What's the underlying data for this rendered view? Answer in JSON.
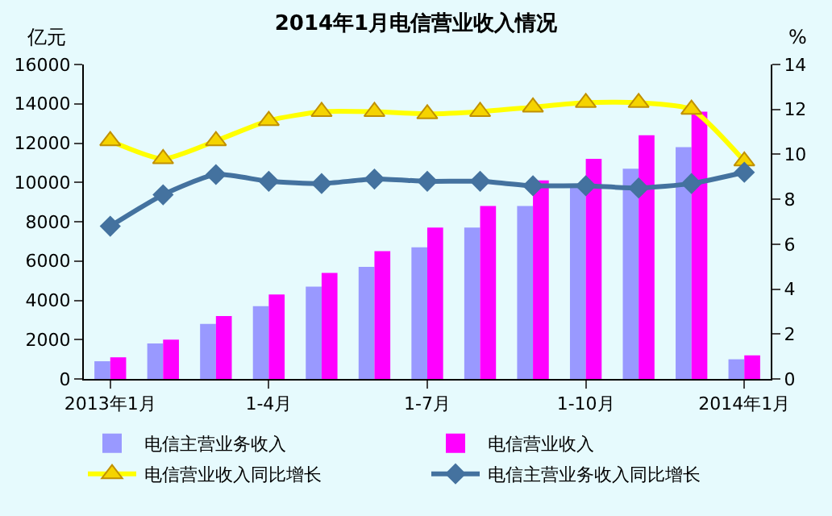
{
  "chart_data": {
    "type": "bar",
    "title": "2014年1月电信营业收入情况",
    "ylabel": "亿元",
    "y2label": "%",
    "categories": [
      "2013年1月",
      null,
      null,
      "1-4月",
      null,
      null,
      "1-7月",
      null,
      null,
      "1-10月",
      null,
      null,
      "2014年1月"
    ],
    "series": [
      {
        "name": "电信主营业务收入",
        "color": "#9999ff",
        "values": [
          900,
          1800,
          2800,
          3700,
          4700,
          5700,
          6700,
          7700,
          8800,
          9900,
          10700,
          11800,
          1000
        ]
      },
      {
        "name": "电信营业收入",
        "color": "#ff00ff",
        "values": [
          1100,
          2000,
          3200,
          4300,
          5400,
          6500,
          7700,
          8800,
          10100,
          11200,
          12400,
          13600,
          1200
        ]
      },
      {
        "name": "电信营业收入同比增长",
        "type": "line",
        "axis": "y2",
        "color": "#ffff00",
        "marker": "triangle",
        "values": [
          10.6,
          9.8,
          10.6,
          11.5,
          11.9,
          11.9,
          11.8,
          11.9,
          12.1,
          12.3,
          12.3,
          12.0,
          9.7
        ]
      },
      {
        "name": "电信主营业务收入同比增长",
        "type": "line",
        "axis": "y2",
        "color": "#44729f",
        "marker": "diamond",
        "values": [
          6.8,
          8.2,
          9.1,
          8.8,
          8.7,
          8.9,
          8.8,
          8.8,
          8.6,
          8.6,
          8.5,
          8.7,
          9.2
        ]
      }
    ],
    "ylim": [
      0,
      16000
    ],
    "yticks": [
      0,
      2000,
      4000,
      6000,
      8000,
      10000,
      12000,
      14000,
      16000
    ],
    "y2lim": [
      0,
      14
    ],
    "y2ticks": [
      0,
      2,
      4,
      6,
      8,
      10,
      12,
      14
    ],
    "grid": false,
    "legend": "bottom"
  }
}
